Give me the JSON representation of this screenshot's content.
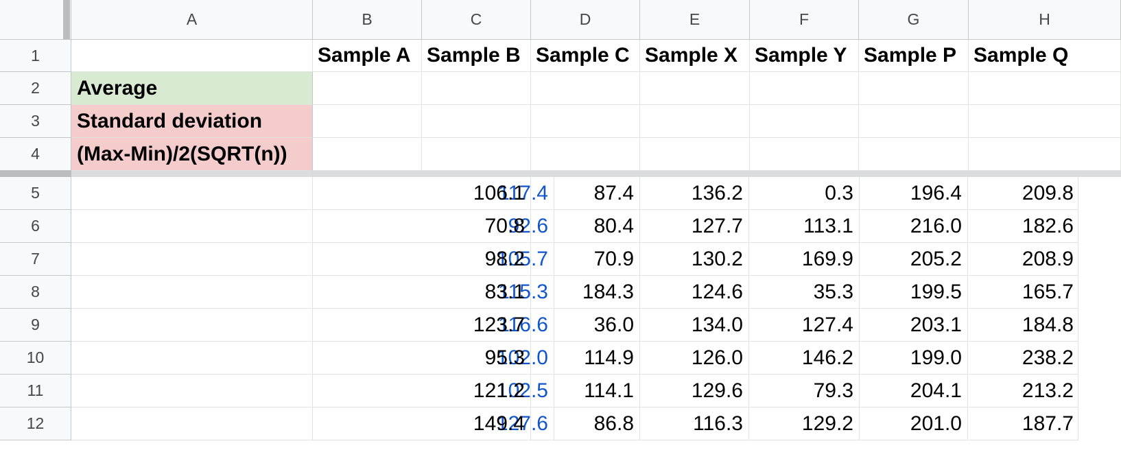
{
  "columns": [
    "A",
    "B",
    "C",
    "D",
    "E",
    "F",
    "G",
    "H"
  ],
  "rows": [
    "1",
    "2",
    "3",
    "4",
    "5",
    "6",
    "7",
    "8",
    "9",
    "10",
    "11",
    "12"
  ],
  "header_row": [
    "",
    "Sample A",
    "Sample B",
    "Sample C",
    "Sample X",
    "Sample Y",
    "Sample P",
    "Sample Q"
  ],
  "stat_labels": [
    "Average",
    "Standard deviation",
    "(Max-Min)/2(SQRT(n))"
  ],
  "stat_colors": [
    "#d9ead3",
    "#f4cccc",
    "#f4cccc"
  ],
  "data_rows": [
    [
      "117.4",
      "106.1",
      "87.4",
      "136.2",
      "0.3",
      "196.4",
      "209.8"
    ],
    [
      "92.6",
      "70.8",
      "80.4",
      "127.7",
      "113.1",
      "216.0",
      "182.6"
    ],
    [
      "105.7",
      "98.2",
      "70.9",
      "130.2",
      "169.9",
      "205.2",
      "208.9"
    ],
    [
      "115.3",
      "83.1",
      "184.3",
      "124.6",
      "35.3",
      "199.5",
      "165.7"
    ],
    [
      "116.6",
      "123.7",
      "36.0",
      "134.0",
      "127.4",
      "203.1",
      "184.8"
    ],
    [
      "102.0",
      "95.3",
      "114.9",
      "126.0",
      "146.2",
      "199.0",
      "238.2"
    ],
    [
      "102.5",
      "121.2",
      "114.1",
      "129.6",
      "79.3",
      "204.1",
      "213.2"
    ],
    [
      "127.6",
      "149.4",
      "86.8",
      "116.3",
      "129.2",
      "201.0",
      "187.7"
    ]
  ],
  "colors": {
    "sample_a_text": "#1155cc",
    "header_bg": "#f8f9fa",
    "gridline": "#e1e3e1"
  }
}
